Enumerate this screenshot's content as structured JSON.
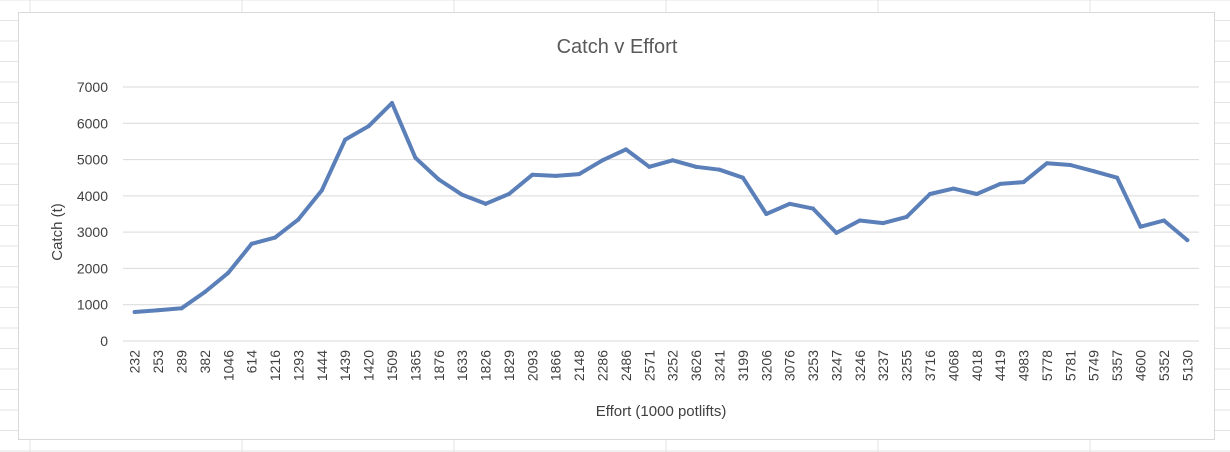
{
  "chart_data": {
    "type": "line",
    "title": "Catch v Effort",
    "xlabel": "Effort (1000 potlifts)",
    "ylabel": "Catch (t)",
    "ylim": [
      0,
      7000
    ],
    "yticks": [
      0,
      1000,
      2000,
      3000,
      4000,
      5000,
      6000,
      7000
    ],
    "grid": "horizontal",
    "legend": "none",
    "line_color": "#5b7fb8",
    "categories": [
      "232",
      "253",
      "289",
      "382",
      "1046",
      "614",
      "1216",
      "1293",
      "1444",
      "1439",
      "1420",
      "1509",
      "1365",
      "1876",
      "1633",
      "1826",
      "1829",
      "2093",
      "1866",
      "2148",
      "2286",
      "2486",
      "2571",
      "3252",
      "3626",
      "3241",
      "3199",
      "3206",
      "3076",
      "3253",
      "3247",
      "3246",
      "3237",
      "3255",
      "3716",
      "4068",
      "4018",
      "4419",
      "4983",
      "5778",
      "5781",
      "5749",
      "5357",
      "4600",
      "5352",
      "5130"
    ],
    "series": [
      {
        "values": [
          800,
          850,
          900,
          1350,
          1880,
          2680,
          2850,
          3350,
          4150,
          5550,
          5920,
          6560,
          5050,
          4450,
          4030,
          3780,
          4050,
          4580,
          4550,
          4600,
          4980,
          5280,
          4800,
          4980,
          4800,
          4720,
          4500,
          3500,
          3780,
          3650,
          2980,
          3320,
          3250,
          3420,
          4050,
          4200,
          4050,
          4330,
          4380,
          4900,
          4850,
          4680,
          4500,
          3150,
          3320,
          2780
        ]
      }
    ]
  }
}
